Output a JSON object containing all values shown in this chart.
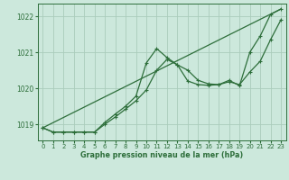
{
  "bg_color": "#cce8dc",
  "grid_color": "#aaccbb",
  "line_color": "#2d6e3a",
  "title": "Graphe pression niveau de la mer (hPa)",
  "xlim": [
    -0.5,
    23.5
  ],
  "ylim": [
    1018.55,
    1022.35
  ],
  "yticks": [
    1019,
    1020,
    1021,
    1022
  ],
  "xticks": [
    0,
    1,
    2,
    3,
    4,
    5,
    6,
    7,
    8,
    9,
    10,
    11,
    12,
    13,
    14,
    15,
    16,
    17,
    18,
    19,
    20,
    21,
    22,
    23
  ],
  "series1_x": [
    0,
    1,
    2,
    3,
    4,
    5,
    6,
    7,
    8,
    9,
    10,
    11,
    12,
    13,
    14,
    15,
    16,
    17,
    18,
    19,
    20,
    21,
    22,
    23
  ],
  "series1_y": [
    1018.9,
    1018.78,
    1018.78,
    1018.78,
    1018.78,
    1018.78,
    1019.05,
    1019.28,
    1019.5,
    1019.78,
    1020.7,
    1021.1,
    1020.85,
    1020.65,
    1020.2,
    1020.1,
    1020.08,
    1020.1,
    1020.22,
    1020.07,
    1021.0,
    1021.45,
    1022.05,
    1022.2
  ],
  "series2_x": [
    0,
    1,
    2,
    3,
    4,
    5,
    6,
    7,
    8,
    9,
    10,
    11,
    12,
    13,
    14,
    15,
    16,
    17,
    18,
    19,
    20,
    21,
    22,
    23
  ],
  "series2_y": [
    1018.9,
    1018.78,
    1018.78,
    1018.78,
    1018.78,
    1018.78,
    1019.0,
    1019.2,
    1019.42,
    1019.65,
    1019.95,
    1020.5,
    1020.8,
    1020.65,
    1020.5,
    1020.22,
    1020.12,
    1020.1,
    1020.18,
    1020.1,
    1020.45,
    1020.75,
    1021.35,
    1021.9
  ],
  "series3_x": [
    0,
    23
  ],
  "series3_y": [
    1018.9,
    1022.2
  ]
}
